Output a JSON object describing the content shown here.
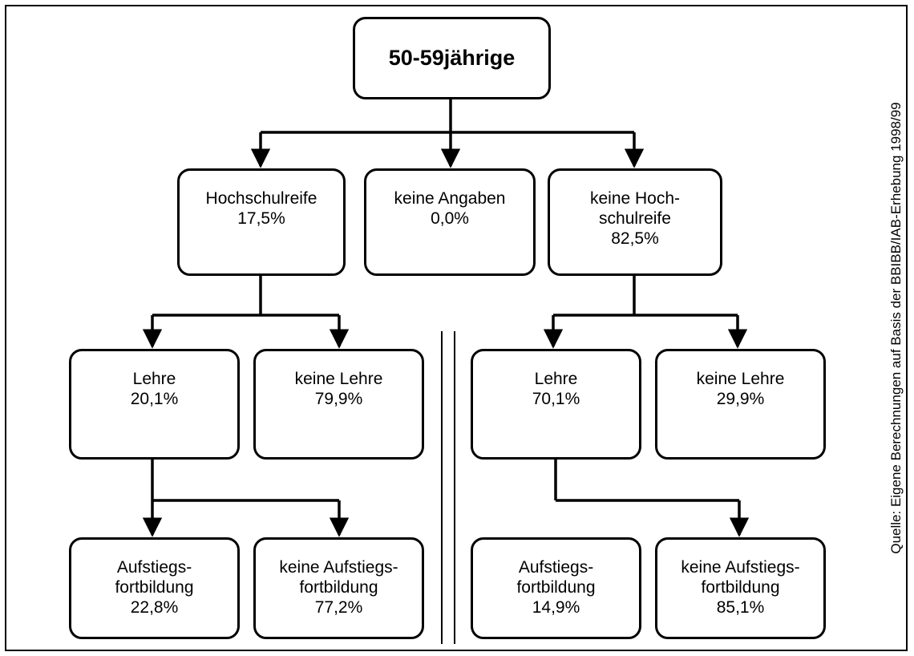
{
  "root": {
    "label": "50-59jährige"
  },
  "level1": [
    {
      "lines": [
        "Hochschulreife",
        "17,5%"
      ]
    },
    {
      "lines": [
        "keine Angaben",
        "0,0%"
      ]
    },
    {
      "lines": [
        "keine Hoch-",
        "schulreife",
        "82,5%"
      ]
    }
  ],
  "level2": [
    {
      "lines": [
        "Lehre",
        "20,1%"
      ]
    },
    {
      "lines": [
        "keine Lehre",
        "79,9%"
      ]
    },
    {
      "lines": [
        "Lehre",
        "70,1%"
      ]
    },
    {
      "lines": [
        "keine Lehre",
        "29,9%"
      ]
    }
  ],
  "level3": [
    {
      "lines": [
        "Aufstiegs-",
        "fortbildung",
        "22,8%"
      ]
    },
    {
      "lines": [
        "keine Aufstiegs-",
        "fortbildung",
        "77,2%"
      ]
    },
    {
      "lines": [
        "Aufstiegs-",
        "fortbildung",
        "14,9%"
      ]
    },
    {
      "lines": [
        "keine Aufstiegs-",
        "fortbildung",
        "85,1%"
      ]
    }
  ],
  "source": "Quelle: Eigene Berechnungen auf Basis der BBIBB/IAB-Erhebung 1998/99"
}
